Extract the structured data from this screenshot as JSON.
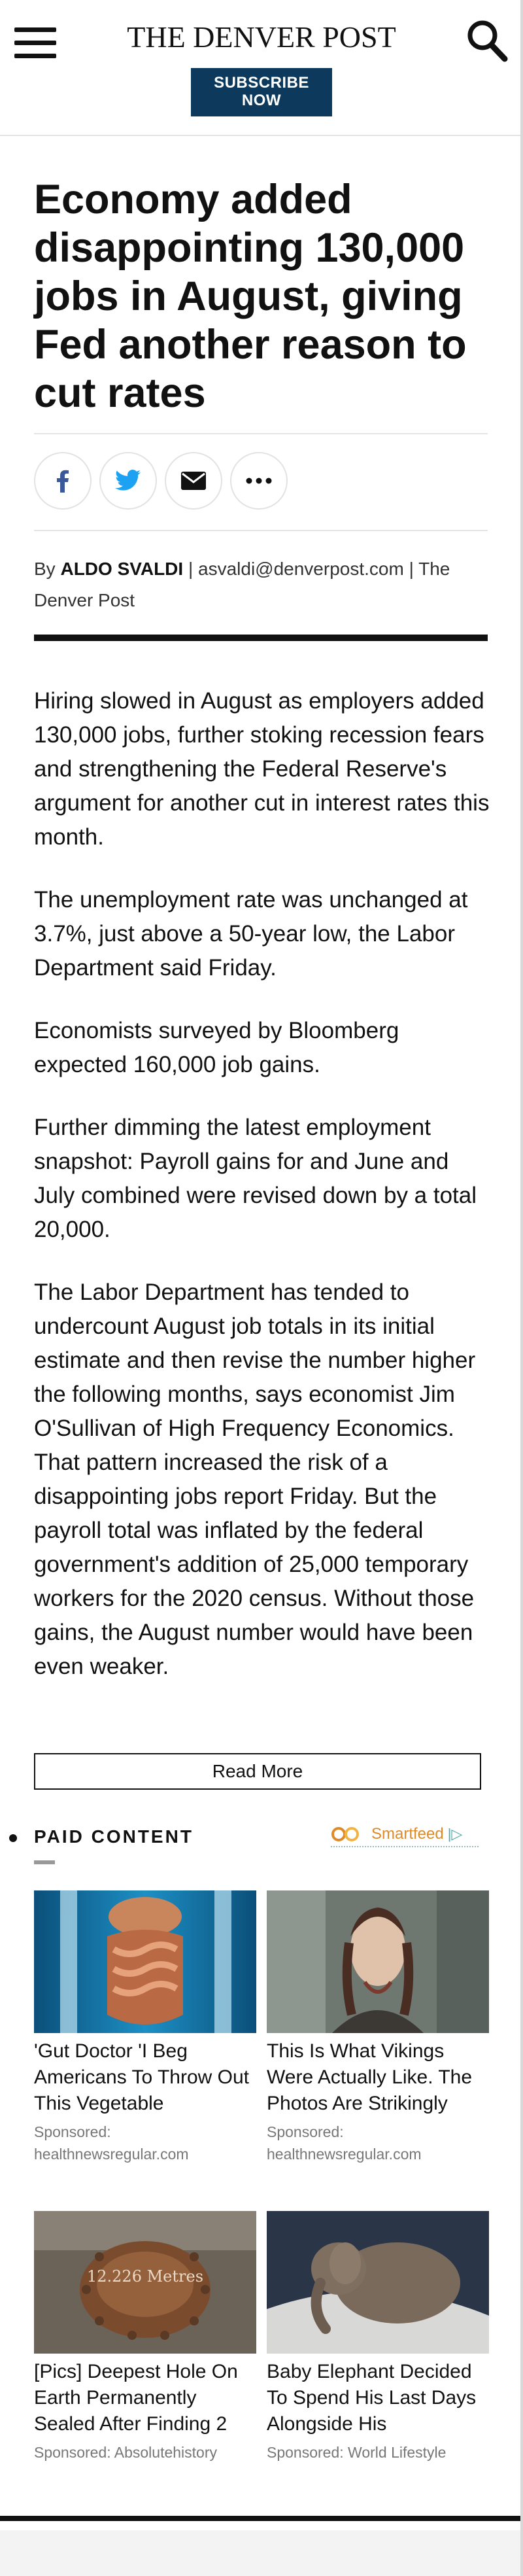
{
  "header": {
    "logo": "THE DENVER POST",
    "subscribe_line1": "SUBSCRIBE",
    "subscribe_line2": "NOW",
    "menu_icon": "hamburger-icon",
    "search_icon": "search-icon"
  },
  "article": {
    "headline": "Economy added disappointing 130,000 jobs in August, giving Fed another reason to cut rates",
    "share_icons": [
      "facebook-icon",
      "twitter-icon",
      "email-icon",
      "more-icon"
    ],
    "byline": {
      "prefix": "By ",
      "author": "ALDO SVALDI",
      "rest": " | asvaldi@denverpost.com | The Denver Post"
    },
    "paragraphs": [
      "Hiring slowed in August as employers added 130,000 jobs, further stoking recession fears and strengthening the Federal Reserve's argument for another cut in interest rates this month.",
      "The unemployment rate was unchanged at 3.7%, just above a 50-year low, the Labor Department said Friday.",
      "Economists surveyed by Bloomberg expected 160,000 job gains.",
      "Further dimming the latest employment snapshot: Payroll gains for and June and July combined were revised down by a total 20,000.",
      "The Labor Department has tended to undercount August job totals in its initial estimate and then revise the number higher the following months, says economist Jim O'Sullivan of High Frequency Economics. That pattern increased the risk of a disappointing jobs report Friday. But the payroll total was inflated by the federal government's addition of 25,000 temporary workers for the 2020 census. Without those gains, the August number would have been even weaker."
    ],
    "read_more": "Read More"
  },
  "paid_content": {
    "label": "PAID CONTENT",
    "provider": "Smartfeed",
    "cards": [
      {
        "title": "'Gut Doctor 'I Beg Americans To Throw Out This Vegetable",
        "sponsor": "Sponsored: healthnewsregular.com"
      },
      {
        "title": "This Is What Vikings Were Actually Like. The Photos Are Strikingly",
        "sponsor": "Sponsored: healthnewsregular.com"
      },
      {
        "title": "[Pics] Deepest Hole On Earth Permanently Sealed After Finding 2",
        "sponsor": "Sponsored: Absolutehistory",
        "image_text": "12.226 Metres"
      },
      {
        "title": "Baby Elephant Decided To Spend His Last Days Alongside His",
        "sponsor": "Sponsored: World Lifestyle"
      }
    ]
  },
  "colors": {
    "subscribe_bg": "#0d3a5c",
    "facebook": "#3b5998",
    "twitter": "#1da1f2",
    "smartfeed": "#e08a27"
  }
}
